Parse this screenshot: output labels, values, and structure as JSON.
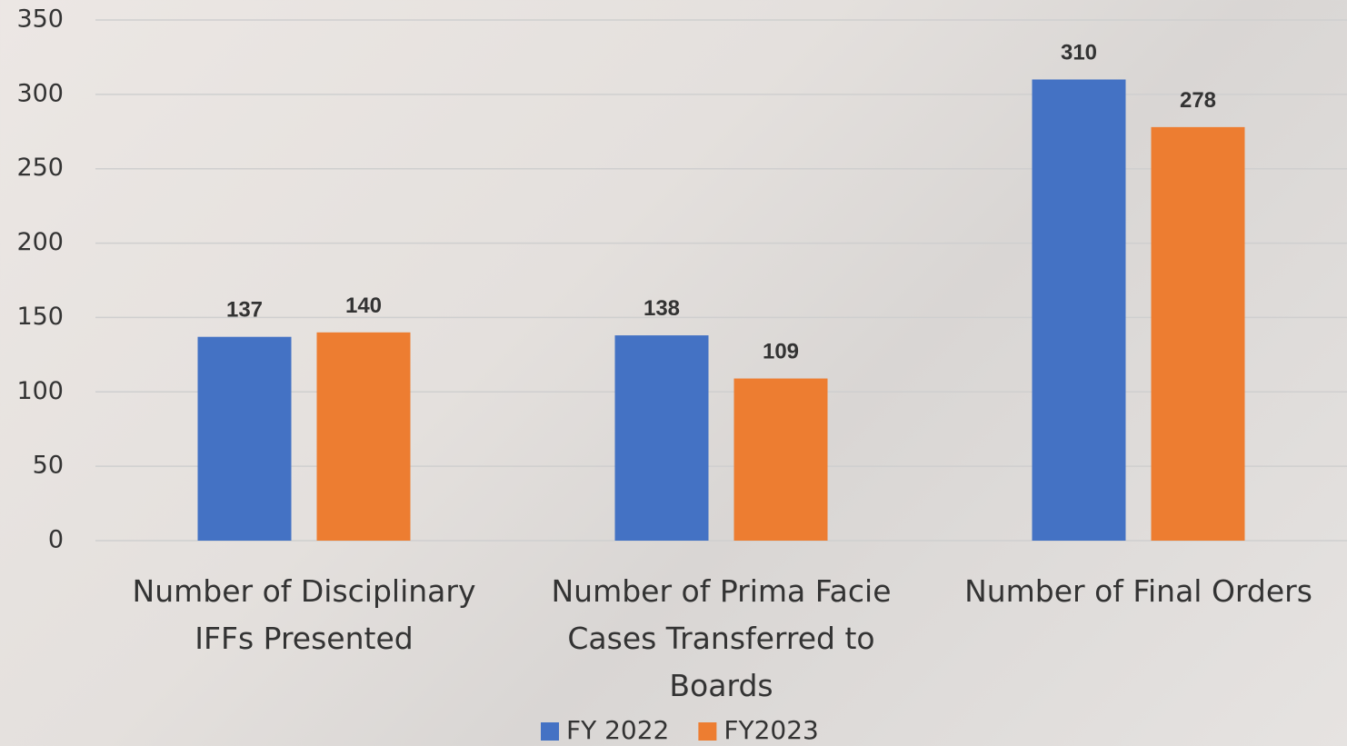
{
  "chart_data": {
    "type": "bar",
    "categories": [
      "Number of Disciplinary IFFs Presented",
      "Number of Prima Facie Cases Transferred to Boards",
      "Number of Final Orders"
    ],
    "series": [
      {
        "name": "FY 2022",
        "color": "#4472c4",
        "values": [
          137,
          138,
          310
        ]
      },
      {
        "name": "FY2023",
        "color": "#ed7d31",
        "values": [
          140,
          109,
          278
        ]
      }
    ],
    "ylim": [
      0,
      350
    ],
    "yticks": [
      0,
      50,
      100,
      150,
      200,
      250,
      300,
      350
    ],
    "grid": true,
    "legend": "bottom"
  }
}
